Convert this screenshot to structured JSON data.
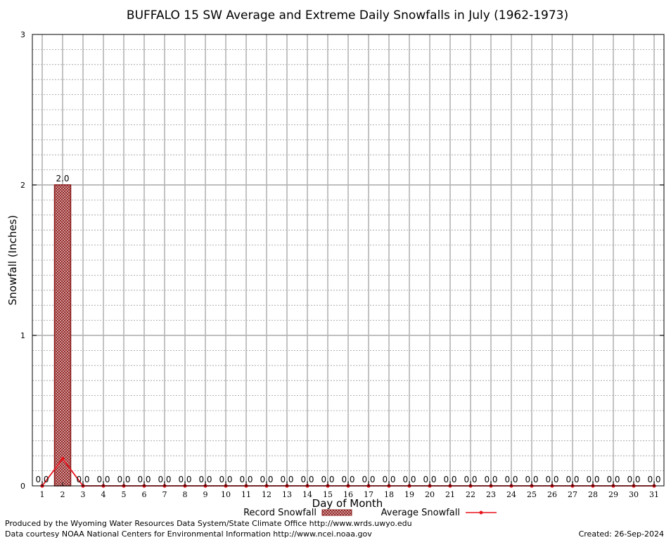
{
  "chart_data": {
    "type": "bar",
    "title": "BUFFALO 15 SW Average and Extreme Daily Snowfalls in July (1962-1973)",
    "xlabel": "Day of Month",
    "ylabel": "Snowfall (Inches)",
    "ylim": [
      0,
      3
    ],
    "yticks": [
      "0",
      "1",
      "2",
      "3"
    ],
    "y_minor_step": 0.1,
    "grid": true,
    "categories": [
      "1",
      "2",
      "3",
      "4",
      "5",
      "6",
      "7",
      "8",
      "9",
      "10",
      "11",
      "12",
      "13",
      "14",
      "15",
      "16",
      "17",
      "18",
      "19",
      "20",
      "21",
      "22",
      "23",
      "24",
      "25",
      "26",
      "27",
      "28",
      "29",
      "30",
      "31"
    ],
    "series": [
      {
        "name": "Record Snowfall",
        "kind": "bar",
        "color": "#8b1a1a",
        "values": [
          0,
          2.0,
          0,
          0,
          0,
          0,
          0,
          0,
          0,
          0,
          0,
          0,
          0,
          0,
          0,
          0,
          0,
          0,
          0,
          0,
          0,
          0,
          0,
          0,
          0,
          0,
          0,
          0,
          0,
          0,
          0
        ],
        "labels": [
          "0.0",
          "2.0",
          "0.0",
          "0.0",
          "0.0",
          "0.0",
          "0.0",
          "0.0",
          "0.0",
          "0.0",
          "0.0",
          "0.0",
          "0.0",
          "0.0",
          "0.0",
          "0.0",
          "0.0",
          "0.0",
          "0.0",
          "0.0",
          "0.0",
          "0.0",
          "0.0",
          "0.0",
          "0.0",
          "0.0",
          "0.0",
          "0.0",
          "0.0",
          "0.0",
          "0.0"
        ]
      },
      {
        "name": "Average Snowfall",
        "kind": "line",
        "color": "#e8141c",
        "values": [
          0,
          0.18,
          0,
          0,
          0,
          0,
          0,
          0,
          0,
          0,
          0,
          0,
          0,
          0,
          0,
          0,
          0,
          0,
          0,
          0,
          0,
          0,
          0,
          0,
          0,
          0,
          0,
          0,
          0,
          0,
          0
        ]
      }
    ],
    "legend_position": "bottom"
  },
  "footer": {
    "produced_by": "Produced by the Wyoming Water Resources Data System/State Climate Office http://www.wrds.uwyo.edu",
    "courtesy": "Data courtesy NOAA National Centers for Environmental Information http://www.ncei.noaa.gov",
    "created": "Created:  26-Sep-2024"
  }
}
